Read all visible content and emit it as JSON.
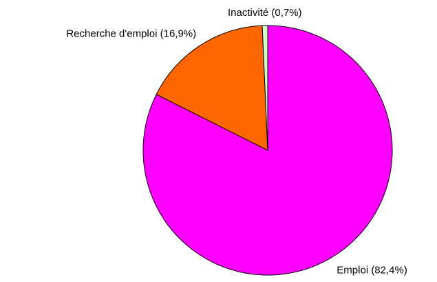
{
  "chart_data": {
    "type": "pie",
    "values": [
      82.4,
      16.9,
      0.7
    ],
    "value_labels": [
      "Emploi (82,4%)",
      "Recherche d'emploi (16,9%)",
      "Inactivité (0,7%)"
    ],
    "colors": [
      "#ff00ff",
      "#ff6600",
      "#ccffcc"
    ]
  }
}
